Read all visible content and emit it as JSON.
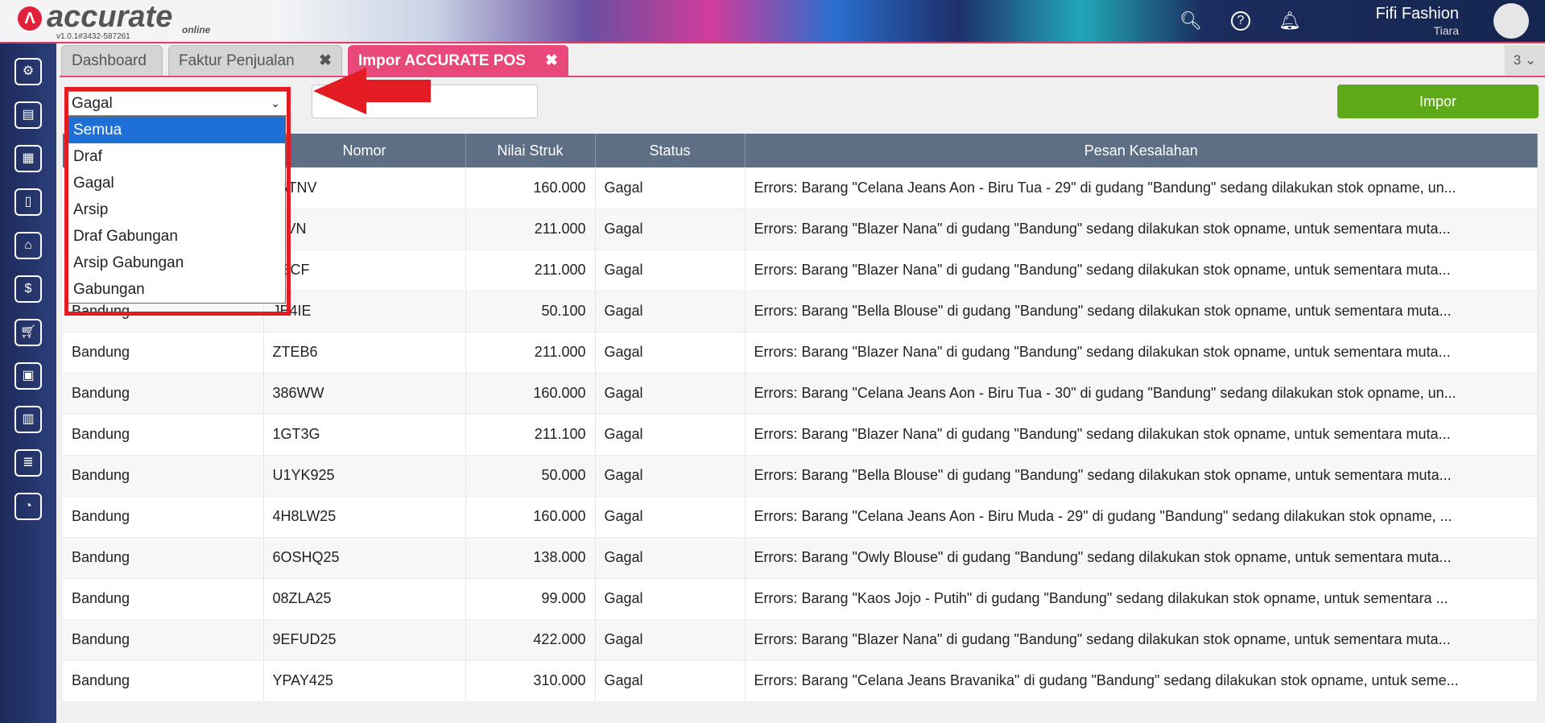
{
  "header": {
    "brand": "accurate",
    "brand_sub": "online",
    "version": "v1.0.1#3432-587261",
    "company": "Fifi Fashion",
    "user": "Tiara"
  },
  "sidebar": {
    "icons": [
      "gear-icon",
      "cash-register-icon",
      "building-icon",
      "book-icon",
      "bank-icon",
      "money-bag-icon",
      "cart-icon",
      "shop-icon",
      "factory-icon",
      "tax-icon",
      "report-icon"
    ]
  },
  "tabs": [
    {
      "label": "Dashboard"
    },
    {
      "label": "Faktur Penjualan",
      "close": "✖"
    },
    {
      "label": "Impor ACCURATE POS",
      "close": "✖"
    }
  ],
  "tab_count": "3 ⌄",
  "filter": {
    "selected": "Gagal",
    "options": [
      "Semua",
      "Draf",
      "Gagal",
      "Arsip",
      "Draf Gabungan",
      "Arsip Gabungan",
      "Gabungan"
    ],
    "highlighted": "Semua"
  },
  "import_button": "Impor",
  "accent_colors": {
    "tab_active": "#e8497a",
    "button": "#5ea918",
    "table_header": "#5d6e85",
    "highlight": "#e31b23"
  },
  "table": {
    "headers": [
      "",
      "Nomor",
      "Nilai Struk",
      "Status",
      "Pesan Kesalahan"
    ],
    "rows": [
      [
        "",
        "/GTNV",
        "160.000",
        "Gagal",
        "Errors: Barang \"Celana Jeans Aon - Biru Tua - 29\" di gudang \"Bandung\" sedang dilakukan stok opname, un..."
      ],
      [
        "",
        "AIVN",
        "211.000",
        "Gagal",
        "Errors: Barang \"Blazer Nana\" di gudang \"Bandung\" sedang dilakukan stok opname, untuk sementara muta..."
      ],
      [
        "",
        "S3CF",
        "211.000",
        "Gagal",
        "Errors: Barang \"Blazer Nana\" di gudang \"Bandung\" sedang dilakukan stok opname, untuk sementara muta..."
      ],
      [
        "Bandung",
        "JE4IE",
        "50.100",
        "Gagal",
        "Errors: Barang \"Bella Blouse\" di gudang \"Bandung\" sedang dilakukan stok opname, untuk sementara muta..."
      ],
      [
        "Bandung",
        "ZTEB6",
        "211.000",
        "Gagal",
        "Errors: Barang \"Blazer Nana\" di gudang \"Bandung\" sedang dilakukan stok opname, untuk sementara muta..."
      ],
      [
        "Bandung",
        "386WW",
        "160.000",
        "Gagal",
        "Errors: Barang \"Celana Jeans Aon - Biru Tua - 30\" di gudang \"Bandung\" sedang dilakukan stok opname, un..."
      ],
      [
        "Bandung",
        "1GT3G",
        "211.100",
        "Gagal",
        "Errors: Barang \"Blazer Nana\" di gudang \"Bandung\" sedang dilakukan stok opname, untuk sementara muta..."
      ],
      [
        "Bandung",
        "U1YK925",
        "50.000",
        "Gagal",
        "Errors: Barang \"Bella Blouse\" di gudang \"Bandung\" sedang dilakukan stok opname, untuk sementara muta..."
      ],
      [
        "Bandung",
        "4H8LW25",
        "160.000",
        "Gagal",
        "Errors: Barang \"Celana Jeans Aon - Biru Muda - 29\" di gudang \"Bandung\" sedang dilakukan stok opname, ..."
      ],
      [
        "Bandung",
        "6OSHQ25",
        "138.000",
        "Gagal",
        "Errors: Barang \"Owly Blouse\" di gudang \"Bandung\" sedang dilakukan stok opname, untuk sementara muta..."
      ],
      [
        "Bandung",
        "08ZLA25",
        "99.000",
        "Gagal",
        "Errors: Barang \"Kaos Jojo - Putih\" di gudang \"Bandung\" sedang dilakukan stok opname, untuk sementara ..."
      ],
      [
        "Bandung",
        "9EFUD25",
        "422.000",
        "Gagal",
        "Errors: Barang \"Blazer Nana\" di gudang \"Bandung\" sedang dilakukan stok opname, untuk sementara muta..."
      ],
      [
        "Bandung",
        "YPAY425",
        "310.000",
        "Gagal",
        "Errors: Barang \"Celana Jeans Bravanika\" di gudang \"Bandung\" sedang dilakukan stok opname, untuk seme..."
      ]
    ]
  }
}
